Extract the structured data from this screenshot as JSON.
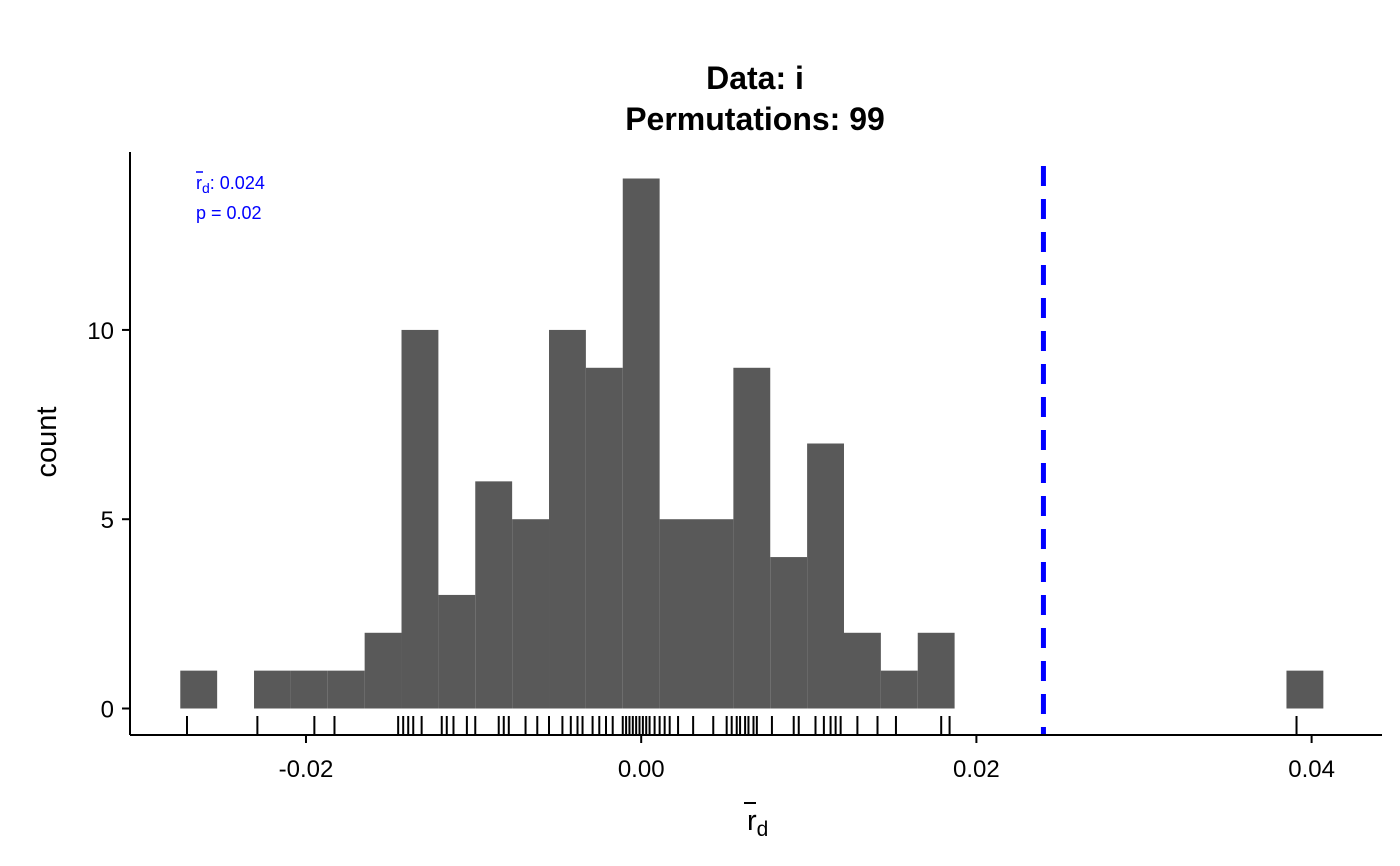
{
  "chart_data": {
    "type": "histogram",
    "title_line1": "Data: i",
    "title_line2": "Permutations: 99",
    "xlabel_base": "r",
    "xlabel_sub": "d",
    "ylabel": "count",
    "xlim": [
      -0.0305,
      0.0442
    ],
    "ylim": [
      -0.7,
      14.7
    ],
    "x_ticks": [
      -0.02,
      0.0,
      0.02,
      0.04
    ],
    "x_tick_labels": [
      "-0.02",
      "0.00",
      "0.02",
      "0.04"
    ],
    "y_ticks": [
      0,
      5,
      10
    ],
    "y_tick_labels": [
      "0",
      "5",
      "10"
    ],
    "bin_width": 0.0022,
    "bars": [
      {
        "x0": -0.0275,
        "x1": -0.0253,
        "count": 1
      },
      {
        "x0": -0.0231,
        "x1": -0.0209,
        "count": 1
      },
      {
        "x0": -0.0209,
        "x1": -0.0187,
        "count": 1
      },
      {
        "x0": -0.0187,
        "x1": -0.0165,
        "count": 1
      },
      {
        "x0": -0.0165,
        "x1": -0.0143,
        "count": 2
      },
      {
        "x0": -0.0143,
        "x1": -0.0121,
        "count": 10
      },
      {
        "x0": -0.0121,
        "x1": -0.0099,
        "count": 3
      },
      {
        "x0": -0.0099,
        "x1": -0.0077,
        "count": 6
      },
      {
        "x0": -0.0077,
        "x1": -0.0055,
        "count": 5
      },
      {
        "x0": -0.0055,
        "x1": -0.0033,
        "count": 10
      },
      {
        "x0": -0.0033,
        "x1": -0.0011,
        "count": 9
      },
      {
        "x0": -0.0011,
        "x1": 0.0011,
        "count": 14
      },
      {
        "x0": 0.0011,
        "x1": 0.0033,
        "count": 5
      },
      {
        "x0": 0.0033,
        "x1": 0.0055,
        "count": 5
      },
      {
        "x0": 0.0055,
        "x1": 0.0077,
        "count": 9
      },
      {
        "x0": 0.0077,
        "x1": 0.0099,
        "count": 4
      },
      {
        "x0": 0.0099,
        "x1": 0.0121,
        "count": 7
      },
      {
        "x0": 0.0121,
        "x1": 0.0143,
        "count": 2
      },
      {
        "x0": 0.0143,
        "x1": 0.0165,
        "count": 1
      },
      {
        "x0": 0.0165,
        "x1": 0.0187,
        "count": 2
      },
      {
        "x0": 0.0385,
        "x1": 0.0407,
        "count": 1
      }
    ],
    "rug": [
      -0.0271,
      -0.0229,
      -0.0195,
      -0.0183,
      -0.0145,
      -0.0142,
      -0.0139,
      -0.0136,
      -0.0131,
      -0.0119,
      -0.0116,
      -0.0112,
      -0.0104,
      -0.0099,
      -0.0085,
      -0.0082,
      -0.0079,
      -0.0069,
      -0.0062,
      -0.0055,
      -0.0047,
      -0.0042,
      -0.0038,
      -0.0035,
      -0.0029,
      -0.0025,
      -0.0021,
      -0.0017,
      -0.0011,
      -0.0009,
      -0.0007,
      -0.0005,
      -0.0003,
      -0.0001,
      0.0001,
      0.0003,
      0.0005,
      0.0008,
      0.0011,
      0.0014,
      0.0017,
      0.0022,
      0.0031,
      0.0043,
      0.0051,
      0.0054,
      0.0057,
      0.0059,
      0.0062,
      0.0064,
      0.0067,
      0.0069,
      0.0078,
      0.0091,
      0.0094,
      0.0104,
      0.0109,
      0.0113,
      0.0116,
      0.0119,
      0.0129,
      0.0141,
      0.0152,
      0.0179,
      0.0184,
      0.0391
    ],
    "observed_value": 0.024,
    "observed_line_color": "#0000ff",
    "bar_color": "#595959",
    "annotation_stat_base": "r",
    "annotation_stat_sub": "d",
    "annotation_stat_value": ": 0.024",
    "annotation_p": "p = 0.02"
  }
}
